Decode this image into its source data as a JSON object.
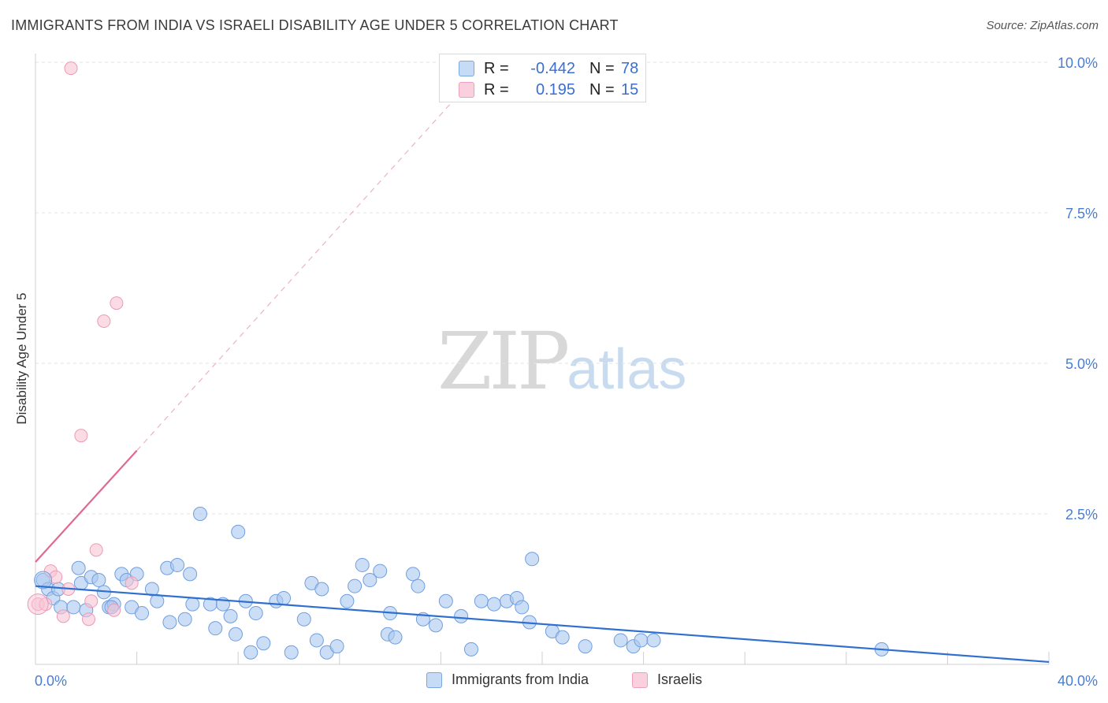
{
  "title": "IMMIGRANTS FROM INDIA VS ISRAELI DISABILITY AGE UNDER 5 CORRELATION CHART",
  "source": "Source: ZipAtlas.com",
  "watermark": {
    "zip": "ZIP",
    "atlas": "atlas"
  },
  "legend_top": {
    "rows": [
      {
        "r_label": "R =",
        "r_value": "-0.442",
        "n_label": "N =",
        "n_value": "78"
      },
      {
        "r_label": "R =",
        "r_value": "0.195",
        "n_label": "N =",
        "n_value": "15"
      }
    ]
  },
  "bottom_legend": {
    "series1": "Immigrants from India",
    "series2": "Israelis"
  },
  "colors": {
    "blue_fill": "#aac8f0",
    "blue_stroke": "#6f9fe0",
    "blue_line": "#2e6fd0",
    "pink_fill": "#f8c4d4",
    "pink_stroke": "#ec9ab6",
    "pink_line": "#e06892",
    "grid": "#e3e3e3",
    "tick_label": "#4a7dd0",
    "axis": "#cfcfcf"
  },
  "chart_data": {
    "type": "scatter",
    "title": "IMMIGRANTS FROM INDIA VS ISRAELI DISABILITY AGE UNDER 5 CORRELATION CHART",
    "xlabel": "",
    "ylabel": "Disability Age Under 5",
    "xlim": [
      0,
      40
    ],
    "ylim": [
      0,
      10
    ],
    "x_tick_labels": [
      {
        "value": 0,
        "label": "0.0%"
      },
      {
        "value": 40,
        "label": "40.0%"
      }
    ],
    "y_tick_labels": [
      {
        "value": 2.5,
        "label": "2.5%"
      },
      {
        "value": 5.0,
        "label": "5.0%"
      },
      {
        "value": 7.5,
        "label": "7.5%"
      },
      {
        "value": 10.0,
        "label": "10.0%"
      }
    ],
    "grid": true,
    "series": [
      {
        "name": "Immigrants from India",
        "color": "blue",
        "r": -0.442,
        "n": 78,
        "trend": {
          "x0": 0,
          "y0": 1.3,
          "x1": 40,
          "y1": 0.04
        },
        "points": [
          [
            0.3,
            1.4
          ],
          [
            0.5,
            1.25
          ],
          [
            0.7,
            1.1
          ],
          [
            0.9,
            1.25
          ],
          [
            1.0,
            0.95
          ],
          [
            1.5,
            0.95
          ],
          [
            1.7,
            1.6
          ],
          [
            1.8,
            1.35
          ],
          [
            2.0,
            0.9
          ],
          [
            2.2,
            1.45
          ],
          [
            2.5,
            1.4
          ],
          [
            2.7,
            1.2
          ],
          [
            2.9,
            0.95
          ],
          [
            3.1,
            1.0
          ],
          [
            3.4,
            1.5
          ],
          [
            3.6,
            1.4
          ],
          [
            3.8,
            0.95
          ],
          [
            4.0,
            1.5
          ],
          [
            4.2,
            0.85
          ],
          [
            4.6,
            1.25
          ],
          [
            4.8,
            1.05
          ],
          [
            5.2,
            1.6
          ],
          [
            5.3,
            0.7
          ],
          [
            5.6,
            1.65
          ],
          [
            5.9,
            0.75
          ],
          [
            6.1,
            1.5
          ],
          [
            6.2,
            1.0
          ],
          [
            6.5,
            2.5
          ],
          [
            6.9,
            1.0
          ],
          [
            7.1,
            0.6
          ],
          [
            7.4,
            1.0
          ],
          [
            7.7,
            0.8
          ],
          [
            7.9,
            0.5
          ],
          [
            8.0,
            2.2
          ],
          [
            8.3,
            1.05
          ],
          [
            8.7,
            0.85
          ],
          [
            9.0,
            0.35
          ],
          [
            9.5,
            1.05
          ],
          [
            9.8,
            1.1
          ],
          [
            10.1,
            0.2
          ],
          [
            10.6,
            0.75
          ],
          [
            10.9,
            1.35
          ],
          [
            11.1,
            0.4
          ],
          [
            11.3,
            1.25
          ],
          [
            11.5,
            0.2
          ],
          [
            11.9,
            0.3
          ],
          [
            12.3,
            1.05
          ],
          [
            12.6,
            1.3
          ],
          [
            12.9,
            1.65
          ],
          [
            13.2,
            1.4
          ],
          [
            13.6,
            1.55
          ],
          [
            13.9,
            0.5
          ],
          [
            14.0,
            0.85
          ],
          [
            14.9,
            1.5
          ],
          [
            15.1,
            1.3
          ],
          [
            15.3,
            0.75
          ],
          [
            15.8,
            0.65
          ],
          [
            16.2,
            1.05
          ],
          [
            16.8,
            0.8
          ],
          [
            17.2,
            0.25
          ],
          [
            17.6,
            1.05
          ],
          [
            18.1,
            1.0
          ],
          [
            18.6,
            1.05
          ],
          [
            19.0,
            1.1
          ],
          [
            19.2,
            0.95
          ],
          [
            19.5,
            0.7
          ],
          [
            19.6,
            1.75
          ],
          [
            20.4,
            0.55
          ],
          [
            20.8,
            0.45
          ],
          [
            21.7,
            0.3
          ],
          [
            23.1,
            0.4
          ],
          [
            23.6,
            0.3
          ],
          [
            23.9,
            0.4
          ],
          [
            24.4,
            0.4
          ],
          [
            33.4,
            0.25
          ],
          [
            14.2,
            0.45
          ],
          [
            8.5,
            0.2
          ],
          [
            3.0,
            0.95
          ]
        ]
      },
      {
        "name": "Israelis",
        "color": "pink",
        "r": 0.195,
        "n": 15,
        "trend_solid": {
          "x0": 0,
          "y0": 1.7,
          "x1": 4.0,
          "y1": 3.55
        },
        "trend_dashed": {
          "x0": 4.0,
          "y0": 3.55,
          "x1": 17.0,
          "y1": 9.6
        },
        "points": [
          [
            0.1,
            1.0
          ],
          [
            0.4,
            1.0
          ],
          [
            0.6,
            1.55
          ],
          [
            0.8,
            1.45
          ],
          [
            1.1,
            0.8
          ],
          [
            1.3,
            1.25
          ],
          [
            1.4,
            9.9
          ],
          [
            1.8,
            3.8
          ],
          [
            2.1,
            0.75
          ],
          [
            2.2,
            1.05
          ],
          [
            2.4,
            1.9
          ],
          [
            2.7,
            5.7
          ],
          [
            3.1,
            0.9
          ],
          [
            3.2,
            6.0
          ],
          [
            3.8,
            1.35
          ]
        ]
      }
    ]
  }
}
